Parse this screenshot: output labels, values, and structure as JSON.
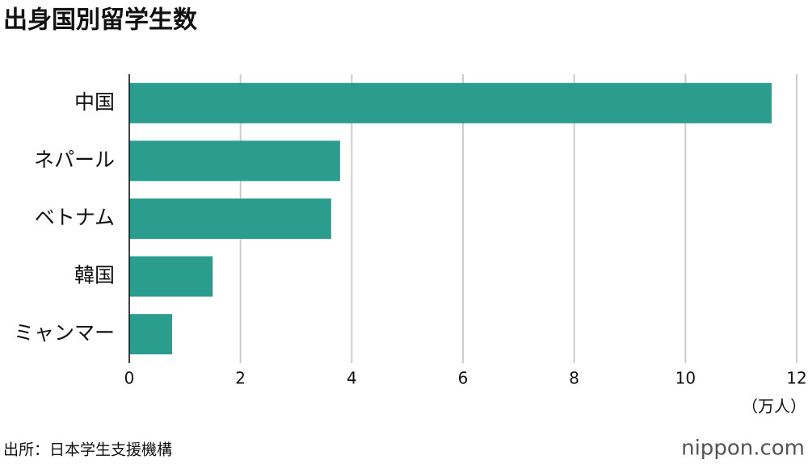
{
  "chart_data": {
    "type": "bar",
    "orientation": "horizontal",
    "title": "出身国別留学生数",
    "categories": [
      "中国",
      "ネパール",
      "ベトナム",
      "韓国",
      "ミャンマー"
    ],
    "values": [
      11.55,
      3.79,
      3.63,
      1.5,
      0.77
    ],
    "color": "#2a9d8f",
    "xlim": [
      0,
      12
    ],
    "xticks": [
      0,
      2,
      4,
      6,
      8,
      10,
      12
    ],
    "x_label": "（万人）",
    "grid": true
  },
  "source": "出所：日本学生支援機構",
  "logo": "nippon.com"
}
